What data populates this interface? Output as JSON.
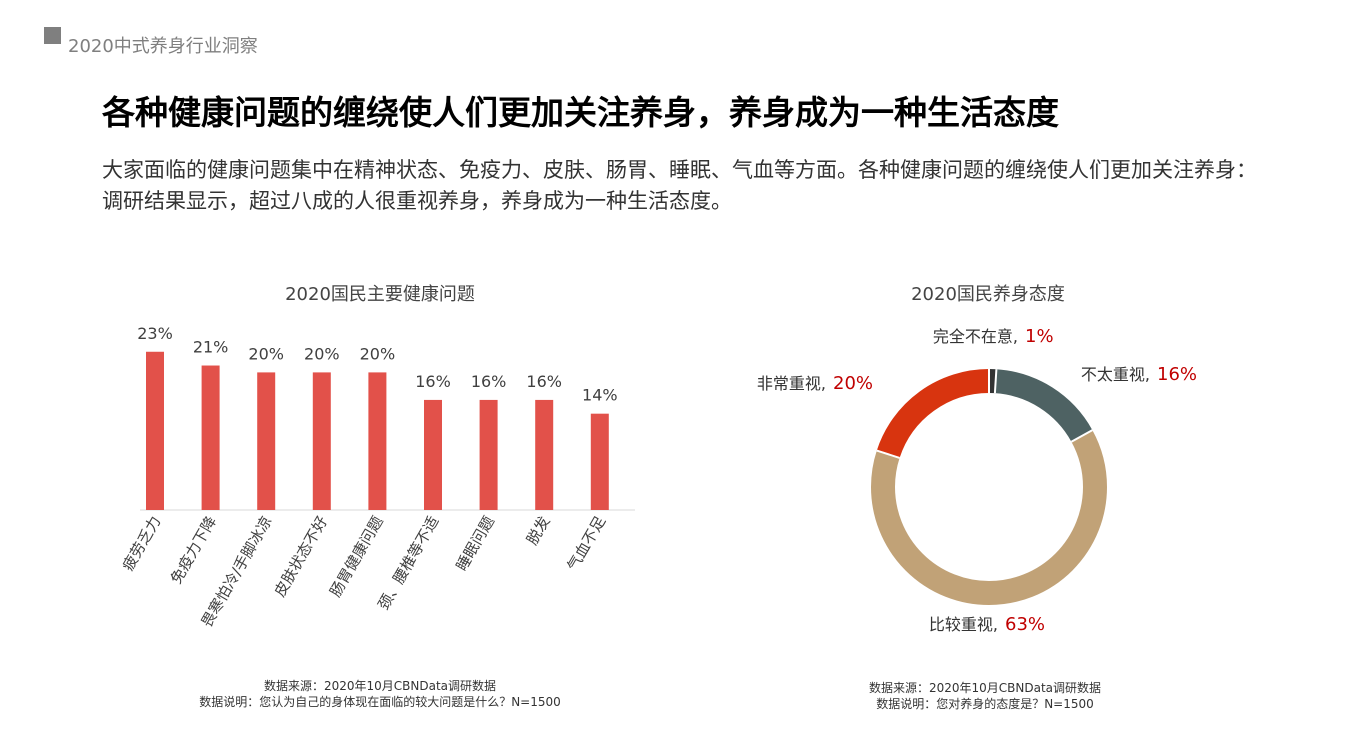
{
  "header": {
    "report_title": "2020中式养身行业洞察"
  },
  "headline": "各种健康问题的缠绕使人们更加关注养身，养身成为一种生活态度",
  "summary": "大家面临的健康问题集中在精神状态、免疫力、皮肤、肠胃、睡眠、气血等方面。各种健康问题的缠绕使人们更加关注养身：调研结果显示，超过八成的人很重视养身，养身成为一种生活态度。",
  "colors": {
    "bar": "#e2514a",
    "very": "#d8340f",
    "fairly": "#c1a277",
    "not_much": "#4e6263",
    "none": "#333333",
    "pct_text": "#c00000"
  },
  "chart_data": [
    {
      "type": "bar",
      "title": "2020国民主要健康问题",
      "categories": [
        "疲劳乏力",
        "免疫力下降",
        "畏寒怕冷/手脚冰凉",
        "皮肤状态不好",
        "肠胃健康问题",
        "颈、腰椎等不适",
        "睡眠问题",
        "脱发",
        "气血不足"
      ],
      "values": [
        23,
        21,
        20,
        20,
        20,
        16,
        16,
        16,
        14
      ],
      "value_labels": [
        "23%",
        "21%",
        "20%",
        "20%",
        "20%",
        "16%",
        "16%",
        "16%",
        "14%"
      ],
      "ylim": [
        0,
        25
      ]
    },
    {
      "type": "pie",
      "title": "2020国民养身态度",
      "labels": [
        "完全不在意",
        "不太重视",
        "比较重视",
        "非常重视"
      ],
      "values": [
        1,
        16,
        63,
        20
      ],
      "value_labels": [
        "1%",
        "16%",
        "63%",
        "20%"
      ]
    }
  ],
  "sources": {
    "left": {
      "line1": "数据来源：2020年10月CBNData调研数据",
      "line2": "数据说明：您认为自己的身体现在面临的较大问题是什么？N=1500"
    },
    "right": {
      "line1": "数据来源：2020年10月CBNData调研数据",
      "line2": "数据说明：您对养身的态度是？N=1500"
    }
  }
}
